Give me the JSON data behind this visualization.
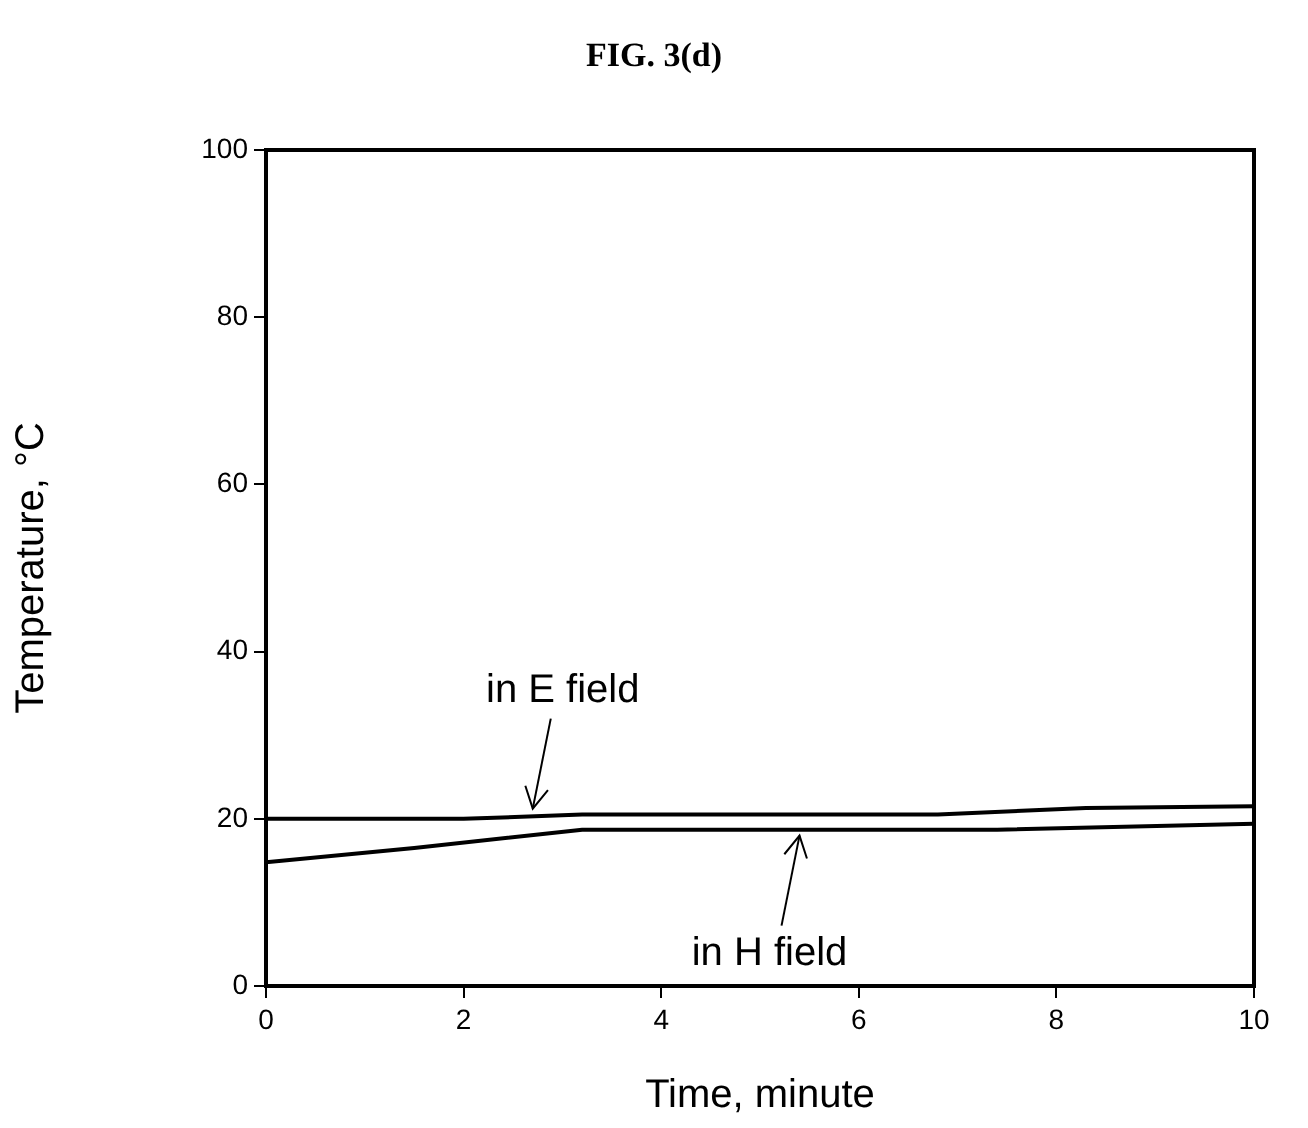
{
  "chart_data": {
    "type": "line",
    "title": "FIG. 3(d)",
    "xlabel": "Time, minute",
    "ylabel": "Temperature, °C",
    "xlim": [
      0,
      10
    ],
    "xticks": [
      0,
      2,
      4,
      6,
      8,
      10
    ],
    "ylim": [
      0,
      100
    ],
    "yticks": [
      0,
      20,
      40,
      60,
      80,
      100
    ],
    "grid": false,
    "legend": false,
    "marker": "none",
    "line_style": "solid",
    "series": [
      {
        "color": "#000000",
        "x": [
          0,
          2,
          3.2,
          6.8,
          8.3,
          10
        ],
        "values": [
          20,
          20,
          20.5,
          20.5,
          21.3,
          21.5
        ]
      },
      {
        "color": "#000000",
        "x": [
          0,
          1.5,
          3.2,
          7.4,
          10
        ],
        "values": [
          14.8,
          16.5,
          18.7,
          18.7,
          19.4
        ]
      }
    ],
    "annotations": [
      {
        "text": "in E field",
        "x": 2.7,
        "y": 20.5
      },
      {
        "text": "in H field",
        "x": 5.4,
        "y": 18.7
      }
    ]
  }
}
